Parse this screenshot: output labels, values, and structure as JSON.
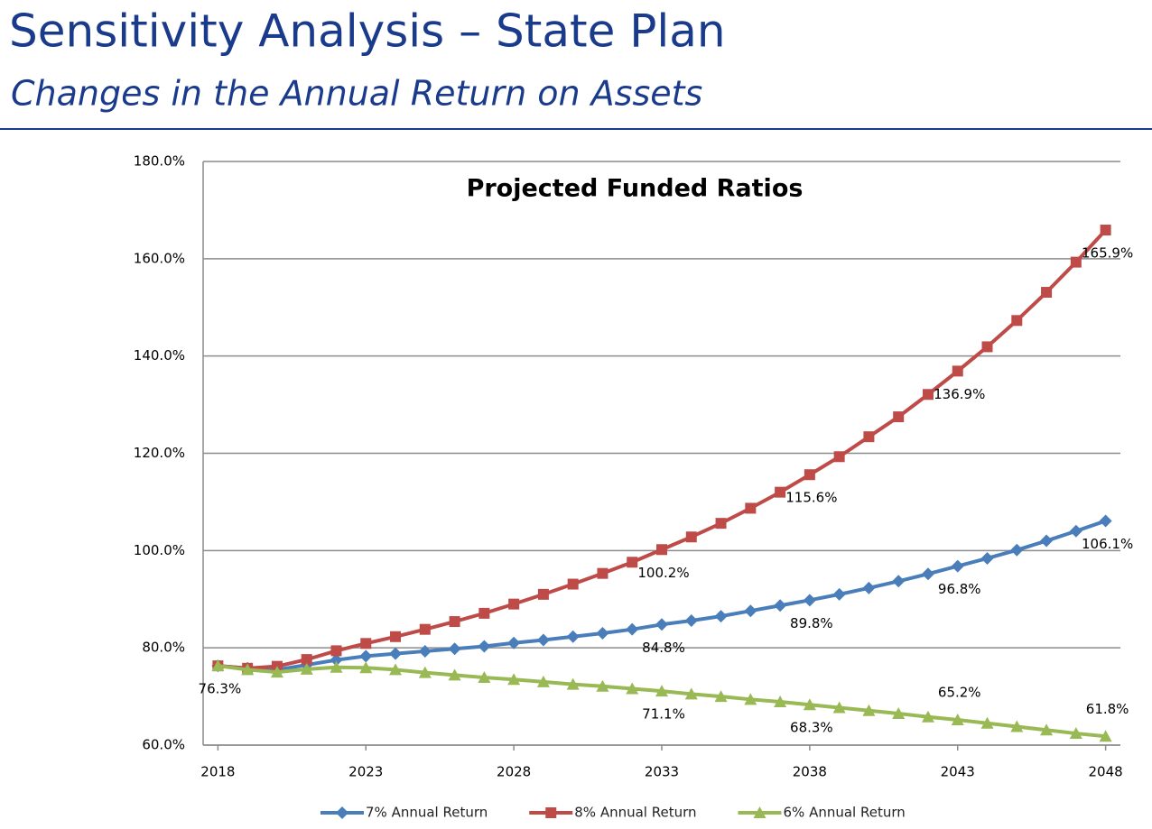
{
  "header": {
    "title": "Sensitivity Analysis – State Plan",
    "subtitle": "Changes in the Annual Return on Assets"
  },
  "chart_data": {
    "type": "line",
    "title": "Projected Funded Ratios",
    "x": [
      2018,
      2019,
      2020,
      2021,
      2022,
      2023,
      2024,
      2025,
      2026,
      2027,
      2028,
      2029,
      2030,
      2031,
      2032,
      2033,
      2034,
      2035,
      2036,
      2037,
      2038,
      2039,
      2040,
      2041,
      2042,
      2043,
      2044,
      2045,
      2046,
      2047,
      2048
    ],
    "xlim": [
      2017.5,
      2048.5
    ],
    "xticks": [
      2018,
      2023,
      2028,
      2033,
      2038,
      2043,
      2048
    ],
    "ylim": [
      60,
      180
    ],
    "yticks": [
      {
        "value": 60,
        "label": "60.0%"
      },
      {
        "value": 80,
        "label": "80.0%"
      },
      {
        "value": 100,
        "label": "100.0%"
      },
      {
        "value": 120,
        "label": "120.0%"
      },
      {
        "value": 140,
        "label": "140.0%"
      },
      {
        "value": 160,
        "label": "160.0%"
      },
      {
        "value": 180,
        "label": "180.0%"
      }
    ],
    "grid": true,
    "legend": "bottom",
    "series": [
      {
        "name": "7% Annual Return",
        "color": "#4a7ebb",
        "values": [
          76.3,
          75.8,
          75.5,
          76.5,
          77.5,
          78.3,
          78.8,
          79.3,
          79.8,
          80.3,
          81.0,
          81.6,
          82.3,
          83.0,
          83.8,
          84.8,
          85.6,
          86.5,
          87.6,
          88.7,
          89.8,
          91.0,
          92.3,
          93.7,
          95.2,
          96.8,
          98.4,
          100.1,
          102.0,
          104.0,
          106.1
        ],
        "value_labels": [
          null,
          null,
          null,
          null,
          null,
          null,
          null,
          null,
          null,
          null,
          null,
          null,
          null,
          null,
          null,
          "84.8%",
          null,
          null,
          null,
          null,
          "89.8%",
          null,
          null,
          null,
          null,
          "96.8%",
          null,
          null,
          null,
          null,
          "106.1%"
        ]
      },
      {
        "name": "8% Annual Return",
        "color": "#be4b48",
        "values": [
          76.3,
          75.8,
          76.2,
          77.6,
          79.4,
          80.9,
          82.3,
          83.8,
          85.4,
          87.1,
          89.0,
          91.0,
          93.1,
          95.3,
          97.6,
          100.2,
          102.8,
          105.6,
          108.7,
          112.0,
          115.6,
          119.3,
          123.4,
          127.5,
          132.1,
          136.9,
          141.9,
          147.3,
          153.1,
          159.3,
          165.9
        ],
        "value_labels": [
          null,
          null,
          null,
          null,
          null,
          null,
          null,
          null,
          null,
          null,
          null,
          null,
          null,
          null,
          null,
          "100.2%",
          null,
          null,
          null,
          null,
          "115.6%",
          null,
          null,
          null,
          null,
          "136.9%",
          null,
          null,
          null,
          null,
          "165.9%"
        ]
      },
      {
        "name": "6% Annual Return",
        "color": "#98b954",
        "values": [
          76.3,
          75.5,
          75.0,
          75.6,
          76.0,
          75.9,
          75.5,
          74.9,
          74.4,
          73.9,
          73.5,
          73.0,
          72.5,
          72.1,
          71.6,
          71.1,
          70.5,
          70.0,
          69.4,
          68.9,
          68.3,
          67.7,
          67.1,
          66.5,
          65.8,
          65.2,
          64.5,
          63.8,
          63.1,
          62.4,
          61.8
        ],
        "value_labels": [
          "76.3%",
          null,
          null,
          null,
          null,
          null,
          null,
          null,
          null,
          null,
          null,
          null,
          null,
          null,
          null,
          "71.1%",
          null,
          null,
          null,
          null,
          "68.3%",
          null,
          null,
          null,
          null,
          "65.2%",
          null,
          null,
          null,
          null,
          "61.8%"
        ]
      }
    ]
  }
}
